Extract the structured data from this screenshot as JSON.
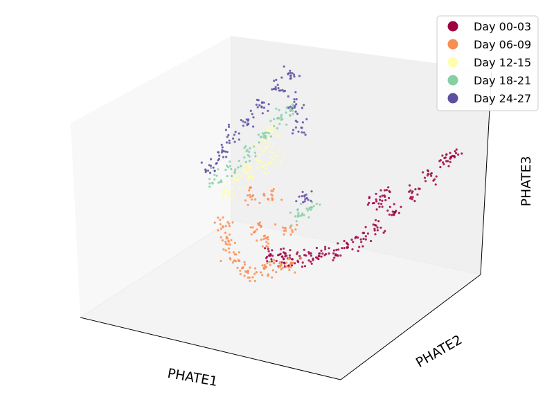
{
  "chart_data": {
    "type": "scatter",
    "projection": "3d",
    "title": "",
    "xlabel": "PHATE1",
    "ylabel": "PHATE2",
    "zlabel": "PHATE3",
    "ticks_visible": false,
    "grid": false,
    "legend_position": "top-right",
    "series": [
      {
        "name": "Day 00-03",
        "color": "#9e0142",
        "points": [
          [
            0.52,
            0.38,
            0.3
          ],
          [
            0.55,
            0.4,
            0.3
          ],
          [
            0.58,
            0.38,
            0.29
          ],
          [
            0.61,
            0.4,
            0.3
          ],
          [
            0.65,
            0.42,
            0.31
          ],
          [
            0.68,
            0.44,
            0.32
          ],
          [
            0.72,
            0.46,
            0.34
          ],
          [
            0.76,
            0.48,
            0.37
          ],
          [
            0.8,
            0.52,
            0.4
          ],
          [
            0.84,
            0.56,
            0.45
          ],
          [
            0.88,
            0.6,
            0.52
          ],
          [
            0.92,
            0.66,
            0.6
          ],
          [
            0.95,
            0.72,
            0.67
          ],
          [
            0.98,
            0.78,
            0.72
          ],
          [
            0.99,
            0.82,
            0.74
          ],
          [
            0.8,
            0.6,
            0.55
          ],
          [
            0.82,
            0.62,
            0.58
          ]
        ]
      },
      {
        "name": "Day 06-09",
        "color": "#f98e52",
        "points": [
          [
            0.3,
            0.45,
            0.35
          ],
          [
            0.33,
            0.42,
            0.3
          ],
          [
            0.36,
            0.4,
            0.24
          ],
          [
            0.4,
            0.38,
            0.2
          ],
          [
            0.44,
            0.38,
            0.18
          ],
          [
            0.48,
            0.4,
            0.2
          ],
          [
            0.52,
            0.42,
            0.22
          ],
          [
            0.56,
            0.44,
            0.24
          ],
          [
            0.4,
            0.5,
            0.34
          ],
          [
            0.45,
            0.48,
            0.3
          ],
          [
            0.5,
            0.52,
            0.35
          ],
          [
            0.35,
            0.55,
            0.45
          ],
          [
            0.42,
            0.56,
            0.48
          ]
        ]
      },
      {
        "name": "Day 12-15",
        "color": "#fefeb0",
        "points": [
          [
            0.25,
            0.55,
            0.45
          ],
          [
            0.28,
            0.58,
            0.5
          ],
          [
            0.3,
            0.62,
            0.56
          ],
          [
            0.32,
            0.6,
            0.52
          ],
          [
            0.35,
            0.64,
            0.58
          ],
          [
            0.38,
            0.66,
            0.62
          ],
          [
            0.33,
            0.68,
            0.66
          ],
          [
            0.36,
            0.7,
            0.72
          ]
        ]
      },
      {
        "name": "Day 18-21",
        "color": "#86cfa5",
        "points": [
          [
            0.22,
            0.55,
            0.5
          ],
          [
            0.26,
            0.6,
            0.55
          ],
          [
            0.3,
            0.64,
            0.62
          ],
          [
            0.34,
            0.68,
            0.7
          ],
          [
            0.38,
            0.72,
            0.78
          ],
          [
            0.4,
            0.74,
            0.84
          ],
          [
            0.55,
            0.52,
            0.45
          ],
          [
            0.58,
            0.56,
            0.48
          ]
        ]
      },
      {
        "name": "Day 24-27",
        "color": "#5e4fa2",
        "points": [
          [
            0.18,
            0.58,
            0.55
          ],
          [
            0.2,
            0.62,
            0.6
          ],
          [
            0.22,
            0.66,
            0.68
          ],
          [
            0.26,
            0.7,
            0.74
          ],
          [
            0.3,
            0.74,
            0.82
          ],
          [
            0.34,
            0.78,
            0.9
          ],
          [
            0.38,
            0.8,
            0.96
          ],
          [
            0.42,
            0.76,
            0.86
          ],
          [
            0.45,
            0.72,
            0.76
          ],
          [
            0.55,
            0.58,
            0.5
          ]
        ]
      }
    ]
  }
}
